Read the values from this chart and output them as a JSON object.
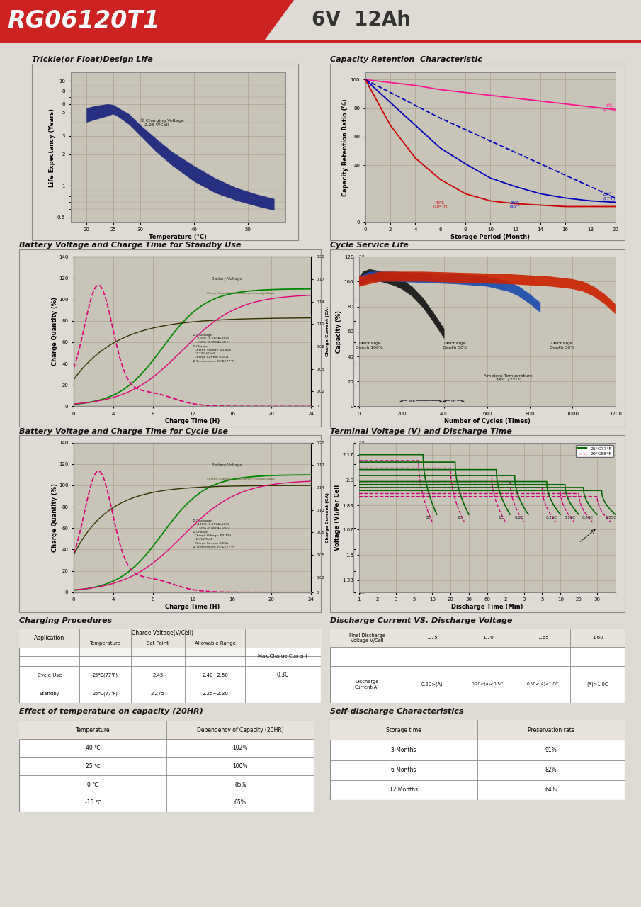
{
  "title_model": "RG06120T1",
  "title_spec": "6V  12Ah",
  "header_bg": "#cc2222",
  "bg_color": "#dedad4",
  "panel_bg": "#ccc8bc",
  "grid_color": "#aaa090",
  "chart1_title": "Trickle(or Float)Design Life",
  "chart1_xlabel": "Temperature (°C)",
  "chart1_ylabel": "Life Expectancy (Years)",
  "chart1_xticks": [
    20,
    25,
    30,
    40,
    50
  ],
  "chart1_yticks": [
    0.5,
    1,
    2,
    3,
    5,
    6,
    8,
    10
  ],
  "chart1_xlim": [
    17,
    57
  ],
  "chart1_ylim_log": [
    0.45,
    12
  ],
  "chart1_band_upper_x": [
    20,
    22,
    24,
    25,
    26,
    28,
    30,
    33,
    36,
    40,
    44,
    48,
    52,
    55
  ],
  "chart1_band_upper_y": [
    5.5,
    5.8,
    6.0,
    5.9,
    5.5,
    4.8,
    3.8,
    2.8,
    2.1,
    1.55,
    1.18,
    0.95,
    0.82,
    0.75
  ],
  "chart1_band_lower_x": [
    20,
    22,
    24,
    25,
    26,
    28,
    30,
    33,
    36,
    40,
    44,
    48,
    52,
    55
  ],
  "chart1_band_lower_y": [
    4.0,
    4.3,
    4.6,
    4.8,
    4.5,
    3.8,
    3.0,
    2.1,
    1.55,
    1.1,
    0.85,
    0.72,
    0.63,
    0.58
  ],
  "chart2_title": "Capacity Retention  Characteristic",
  "chart2_xlabel": "Storage Period (Month)",
  "chart2_ylabel": "Capacity Retention Ratio (%)",
  "chart2_xlim": [
    0,
    20
  ],
  "chart2_ylim": [
    0,
    105
  ],
  "chart2_xticks": [
    0,
    2,
    4,
    6,
    8,
    10,
    12,
    14,
    16,
    18,
    20
  ],
  "chart2_yticks": [
    0,
    40,
    60,
    80,
    100
  ],
  "chart2_curves": [
    {
      "label": "5°C\n(41°F)",
      "color": "#ff1493",
      "x": [
        0,
        2,
        4,
        6,
        8,
        10,
        12,
        14,
        16,
        18,
        20
      ],
      "y": [
        100,
        98,
        96,
        93,
        91,
        89,
        87,
        85,
        83,
        81,
        79
      ],
      "dashed": false
    },
    {
      "label": "25°C\n(77°F)",
      "color": "#0000cc",
      "x": [
        0,
        2,
        4,
        6,
        8,
        10,
        12,
        14,
        16,
        18,
        20
      ],
      "y": [
        100,
        91,
        82,
        73,
        65,
        57,
        49,
        41,
        33,
        25,
        17
      ],
      "dashed": true
    },
    {
      "label": "30°C\n(86°F)",
      "color": "#0000cc",
      "x": [
        0,
        2,
        4,
        6,
        8,
        10,
        12,
        14,
        16,
        18,
        20
      ],
      "y": [
        100,
        84,
        68,
        52,
        41,
        31,
        25,
        20,
        17,
        15,
        14
      ],
      "dashed": false
    },
    {
      "label": "40°C\n(104°F)",
      "color": "#cc0000",
      "x": [
        0,
        2,
        4,
        6,
        8,
        10,
        12,
        14,
        16,
        18,
        20
      ],
      "y": [
        100,
        68,
        45,
        30,
        20,
        15,
        13,
        12,
        11,
        11,
        11
      ],
      "dashed": false
    }
  ],
  "chart3_title": "Battery Voltage and Charge Time for Standby Use",
  "chart4_title": "Cycle Service Life",
  "chart5_title": "Battery Voltage and Charge Time for Cycle Use",
  "chart6_title": "Terminal Voltage (V) and Discharge Time",
  "charge_procedures_title": "Charging Procedures",
  "discharge_table_title": "Discharge Current VS. Discharge Voltage",
  "temp_table_title": "Effect of temperature on capacity (20HR)",
  "self_discharge_title": "Self-discharge Characteristics",
  "temp_table_rows": [
    [
      "40 ℃",
      "102%"
    ],
    [
      "25 ℃",
      "100%"
    ],
    [
      "0 ℃",
      "85%"
    ],
    [
      "-15 ℃",
      "65%"
    ]
  ],
  "self_discharge_rows": [
    [
      "3 Months",
      "91%"
    ],
    [
      "6 Months",
      "82%"
    ],
    [
      "12 Months",
      "64%"
    ]
  ],
  "footer_color": "#cc2222"
}
